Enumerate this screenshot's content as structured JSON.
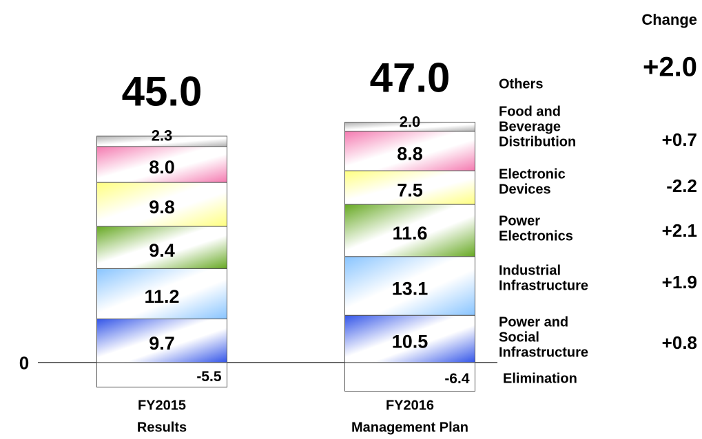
{
  "chart_data": {
    "type": "stacked_bar",
    "categories": [
      [
        "FY2015",
        "Results"
      ],
      [
        "FY2016",
        "Management Plan"
      ]
    ],
    "totals": [
      45.0,
      47.0
    ],
    "totals_labels": [
      "45.0",
      "47.0"
    ],
    "change_title": "Change",
    "total_change": 2.0,
    "total_change_label": "+2.0",
    "ylim": [
      -10,
      70
    ],
    "yticks": [
      0
    ],
    "series": [
      {
        "name": [
          "Elimination"
        ],
        "color": "#ffffff",
        "values": [
          -5.5,
          -6.4
        ]
      },
      {
        "name": [
          "Power and",
          "Social",
          "Infrastructure"
        ],
        "color": "#3355e8",
        "values": [
          9.7,
          10.5
        ],
        "change": 0.8,
        "change_label": "+0.8"
      },
      {
        "name": [
          "Industrial",
          "Infrastructure"
        ],
        "color": "#88c4ff",
        "values": [
          11.2,
          13.1
        ],
        "change": 1.9,
        "change_label": "+1.9"
      },
      {
        "name": [
          "Power",
          "Electronics"
        ],
        "color": "#66a822",
        "values": [
          9.4,
          11.6
        ],
        "change": 2.1,
        "change_label": "+2.1"
      },
      {
        "name": [
          "Electronic",
          "Devices"
        ],
        "color": "#ffff80",
        "values": [
          9.8,
          7.5
        ],
        "change": -2.2,
        "change_label": "-2.2"
      },
      {
        "name": [
          "Food and",
          "Beverage",
          "Distribution"
        ],
        "color": "#f47ab0",
        "values": [
          8.0,
          8.8
        ],
        "value_labels": [
          "8.0",
          "8.8"
        ],
        "change": 0.7,
        "change_label": "+0.7"
      },
      {
        "name": [
          "Others"
        ],
        "color": "#b0b0b0",
        "values": [
          2.3,
          2.0
        ],
        "value_labels": [
          "2.3",
          "2.0"
        ]
      }
    ]
  }
}
